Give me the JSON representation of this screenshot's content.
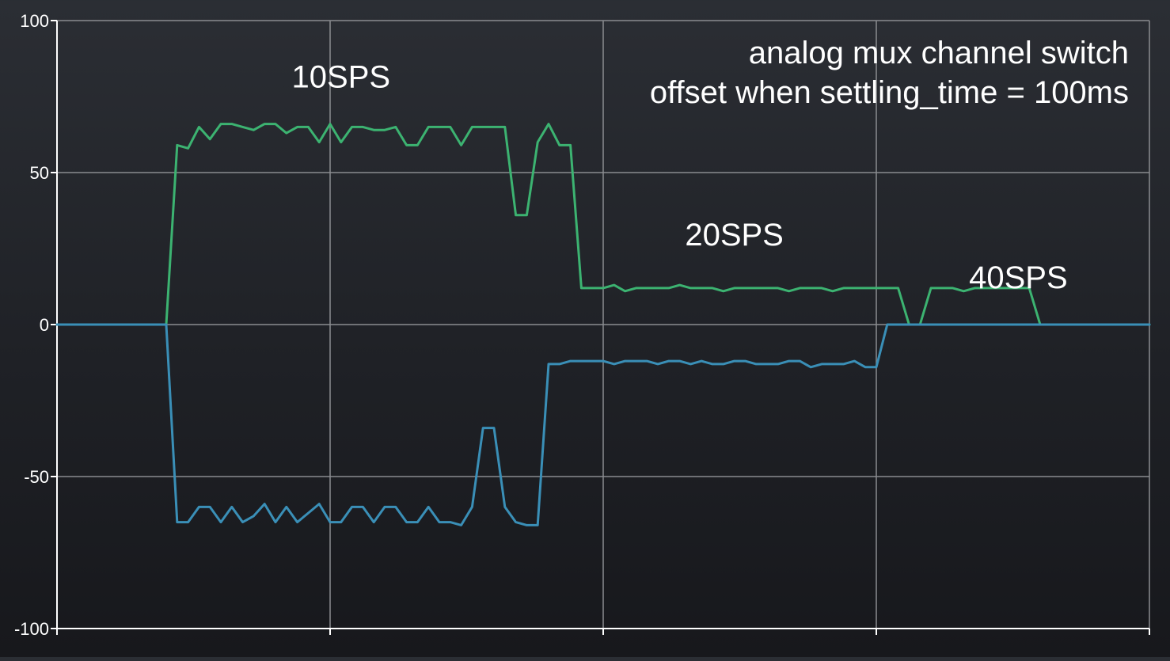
{
  "chart_data": {
    "type": "line",
    "title_lines": [
      "analog mux channel switch",
      "offset when settling_time = 100ms"
    ],
    "xlabel": "",
    "ylabel": "",
    "ylim": [
      -100,
      100
    ],
    "xlim": [
      0,
      200
    ],
    "y_ticks": [
      100,
      50,
      0,
      -50,
      -100
    ],
    "y_tick_labels": [
      "100",
      "50",
      "0",
      "-50",
      "-100"
    ],
    "x_ticks": [
      0,
      50,
      100,
      150,
      200
    ],
    "x_tick_labels": [
      "",
      "",
      "",
      "",
      ""
    ],
    "grid": true,
    "annotations": [
      {
        "text": "10SPS",
        "x": 52,
        "y": 78
      },
      {
        "text": "20SPS",
        "x": 124,
        "y": 26
      },
      {
        "text": "40SPS",
        "x": 176,
        "y": 12
      }
    ],
    "colors": {
      "series1": "#3cb371",
      "series2": "#3a8fb7",
      "grid": "#8a8c90",
      "text": "#ffffff"
    },
    "series": [
      {
        "color": "#3cb371",
        "x": [
          0,
          2,
          4,
          6,
          8,
          10,
          12,
          14,
          16,
          18,
          20,
          22,
          24,
          26,
          28,
          30,
          32,
          34,
          36,
          38,
          40,
          42,
          44,
          46,
          48,
          50,
          52,
          54,
          56,
          58,
          60,
          62,
          64,
          66,
          68,
          70,
          72,
          74,
          76,
          78,
          80,
          82,
          84,
          86,
          88,
          90,
          92,
          94,
          96,
          98,
          100,
          102,
          104,
          106,
          108,
          110,
          112,
          114,
          116,
          118,
          120,
          122,
          124,
          126,
          128,
          130,
          132,
          134,
          136,
          138,
          140,
          142,
          144,
          146,
          148,
          150,
          152,
          154,
          156,
          158,
          160,
          162,
          164,
          166,
          168,
          170,
          172,
          174,
          176,
          178,
          180,
          182,
          184,
          186,
          188,
          190,
          192,
          194,
          196,
          198,
          200
        ],
        "values": [
          0,
          0,
          0,
          0,
          0,
          0,
          0,
          0,
          0,
          0,
          0,
          59,
          58,
          65,
          61,
          66,
          66,
          65,
          64,
          66,
          66,
          63,
          65,
          65,
          60,
          66,
          60,
          65,
          65,
          64,
          64,
          65,
          59,
          59,
          65,
          65,
          65,
          59,
          65,
          65,
          65,
          65,
          36,
          36,
          60,
          66,
          59,
          59,
          12,
          12,
          12,
          13,
          11,
          12,
          12,
          12,
          12,
          13,
          12,
          12,
          12,
          11,
          12,
          12,
          12,
          12,
          12,
          11,
          12,
          12,
          12,
          11,
          12,
          12,
          12,
          12,
          12,
          12,
          0,
          0,
          12,
          12,
          12,
          11,
          12,
          12,
          12,
          12,
          12,
          12,
          0,
          0,
          0,
          0,
          0,
          0,
          0,
          0,
          0,
          0,
          0
        ]
      },
      {
        "color": "#3a8fb7",
        "x": [
          0,
          2,
          4,
          6,
          8,
          10,
          12,
          14,
          16,
          18,
          20,
          22,
          24,
          26,
          28,
          30,
          32,
          34,
          36,
          38,
          40,
          42,
          44,
          46,
          48,
          50,
          52,
          54,
          56,
          58,
          60,
          62,
          64,
          66,
          68,
          70,
          72,
          74,
          76,
          78,
          80,
          82,
          84,
          86,
          88,
          90,
          92,
          94,
          96,
          98,
          100,
          102,
          104,
          106,
          108,
          110,
          112,
          114,
          116,
          118,
          120,
          122,
          124,
          126,
          128,
          130,
          132,
          134,
          136,
          138,
          140,
          142,
          144,
          146,
          148,
          150,
          152,
          154,
          156,
          158,
          160,
          162,
          164,
          166,
          168,
          170,
          172,
          174,
          176,
          178,
          180,
          182,
          184,
          186,
          188,
          190,
          192,
          194,
          196,
          198,
          200
        ],
        "values": [
          0,
          0,
          0,
          0,
          0,
          0,
          0,
          0,
          0,
          0,
          0,
          -65,
          -65,
          -60,
          -60,
          -65,
          -60,
          -65,
          -63,
          -59,
          -65,
          -60,
          -65,
          -62,
          -59,
          -65,
          -65,
          -60,
          -60,
          -65,
          -60,
          -60,
          -65,
          -65,
          -60,
          -65,
          -65,
          -66,
          -60,
          -34,
          -34,
          -60,
          -65,
          -66,
          -66,
          -13,
          -13,
          -12,
          -12,
          -12,
          -12,
          -13,
          -12,
          -12,
          -12,
          -13,
          -12,
          -12,
          -13,
          -12,
          -13,
          -13,
          -12,
          -12,
          -13,
          -13,
          -13,
          -12,
          -12,
          -14,
          -13,
          -13,
          -13,
          -12,
          -14,
          -14,
          0,
          0,
          0,
          0,
          0,
          0,
          0,
          0,
          0,
          0,
          0,
          0,
          0,
          0,
          0,
          0,
          0,
          0,
          0,
          0,
          0,
          0,
          0,
          0,
          0
        ]
      }
    ]
  }
}
